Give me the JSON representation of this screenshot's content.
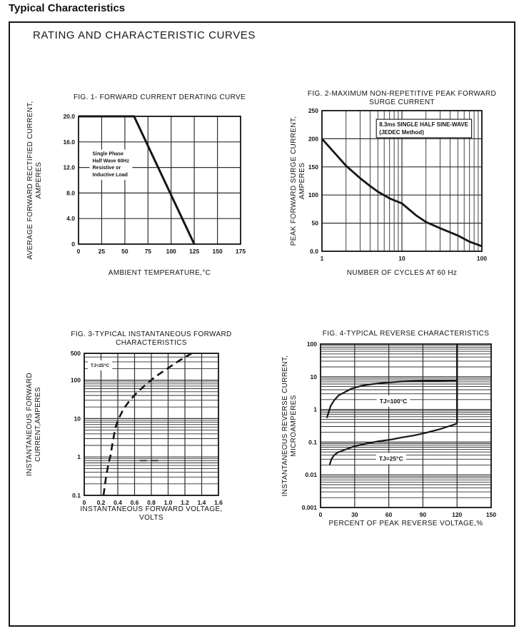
{
  "page": {
    "title": "Typical Characteristics",
    "section_heading": "RATING AND CHARACTERISTIC CURVES"
  },
  "colors": {
    "ink": "#161616",
    "grid": "#2f2f2f",
    "bg": "#ffffff"
  },
  "chart_data": [
    {
      "id": "fig1",
      "type": "line",
      "title": [
        "FIG. 1- FORWARD CURRENT DERATING CURVE"
      ],
      "xlabel": [
        "AMBIENT TEMPERATURE,°C"
      ],
      "ylabel": [
        "AVERAGE FORWARD RECTIFIED CURRENT,",
        "AMPERES"
      ],
      "xscale": "linear",
      "yscale": "linear",
      "xlim": [
        0,
        175
      ],
      "ylim": [
        0,
        20
      ],
      "xticks": [
        {
          "v": 0,
          "l": "0"
        },
        {
          "v": 25,
          "l": "25"
        },
        {
          "v": 50,
          "l": "50"
        },
        {
          "v": 75,
          "l": "75"
        },
        {
          "v": 100,
          "l": "100"
        },
        {
          "v": 125,
          "l": "125"
        },
        {
          "v": 150,
          "l": "150"
        },
        {
          "v": 175,
          "l": "175"
        }
      ],
      "yticks": [
        {
          "v": 0,
          "l": "0"
        },
        {
          "v": 4,
          "l": "4.0"
        },
        {
          "v": 8,
          "l": "8.0"
        },
        {
          "v": 12,
          "l": "12.0"
        },
        {
          "v": 16,
          "l": "16.0"
        },
        {
          "v": 20,
          "l": "20.0"
        }
      ],
      "grid": "major",
      "series": [
        {
          "name": "derating-curve",
          "x": [
            0,
            60,
            125
          ],
          "y": [
            20,
            20,
            0
          ],
          "dashed": false,
          "width": 3
        }
      ],
      "annotations": [
        {
          "lines": [
            "Single Phase",
            "Half Wave 60Hz",
            "Resistive or",
            "Inductive Load"
          ],
          "x": 15,
          "y": 13.9,
          "size": 7,
          "align": "start",
          "boxed": false
        }
      ]
    },
    {
      "id": "fig2",
      "type": "line",
      "title": [
        "FIG. 2-MAXIMUM NON-REPETITIVE PEAK FORWARD",
        "SURGE CURRENT"
      ],
      "xlabel": [
        "NUMBER OF CYCLES AT 60 Hz"
      ],
      "ylabel": [
        "PEAK FORWARD SURGE CURRENT,",
        "AMPERES"
      ],
      "xscale": "log",
      "yscale": "linear",
      "xlim": [
        1,
        100
      ],
      "ylim": [
        0,
        250
      ],
      "xticks": [
        {
          "v": 1,
          "l": "1"
        },
        {
          "v": 10,
          "l": "10"
        },
        {
          "v": 100,
          "l": "100"
        }
      ],
      "yticks": [
        {
          "v": 0,
          "l": "0.0"
        },
        {
          "v": 50,
          "l": "50"
        },
        {
          "v": 100,
          "l": "100"
        },
        {
          "v": 150,
          "l": "150"
        },
        {
          "v": 200,
          "l": "200"
        },
        {
          "v": 250,
          "l": "250"
        }
      ],
      "grid": "major-and-log-minor-x",
      "series": [
        {
          "name": "surge-current-curve",
          "x": [
            1,
            1.5,
            2,
            3,
            4,
            5,
            7,
            10,
            15,
            20,
            30,
            50,
            70,
            100
          ],
          "y": [
            200,
            172,
            152,
            130,
            116,
            106,
            94,
            85,
            64,
            52,
            41,
            28,
            17,
            9
          ],
          "dashed": false,
          "width": 2.8
        }
      ],
      "annotations": [
        {
          "lines": [
            "8.3ms SINGLE HALF SINE-WAVE",
            "(JEDEC Method)"
          ],
          "x": 5.2,
          "y": 222,
          "size": 8,
          "align": "start",
          "boxed": true
        }
      ]
    },
    {
      "id": "fig3",
      "type": "line",
      "title": [
        "FIG. 3-TYPICAL INSTANTANEOUS FORWARD",
        "CHARACTERISTICS"
      ],
      "xlabel": [
        "INSTANTANEOUS FORWARD VOLTAGE,",
        "VOLTS"
      ],
      "ylabel": [
        "INSTANTANEOUS FORWARD",
        "CURRENT,AMPERES"
      ],
      "xscale": "linear",
      "yscale": "log",
      "xlim": [
        0,
        1.6
      ],
      "ylim": [
        0.1,
        500
      ],
      "xticks": [
        {
          "v": 0,
          "l": "0"
        },
        {
          "v": 0.2,
          "l": "0.2"
        },
        {
          "v": 0.4,
          "l": "0.4"
        },
        {
          "v": 0.6,
          "l": "0.6"
        },
        {
          "v": 0.8,
          "l": "0.8"
        },
        {
          "v": 1.0,
          "l": "1.0"
        },
        {
          "v": 1.2,
          "l": "1.2"
        },
        {
          "v": 1.4,
          "l": "1.4"
        },
        {
          "v": 1.6,
          "l": "1.6"
        }
      ],
      "yticks": [
        {
          "v": 0.1,
          "l": "0.1"
        },
        {
          "v": 1,
          "l": "1"
        },
        {
          "v": 10,
          "l": "10"
        },
        {
          "v": 100,
          "l": "100"
        },
        {
          "v": 500,
          "l": "500"
        }
      ],
      "grid": "major-and-log-minor-y",
      "series": [
        {
          "name": "forward-characteristic-curve",
          "x": [
            0.23,
            0.26,
            0.29,
            0.31,
            0.34,
            0.37,
            0.41,
            0.47,
            0.54,
            0.63,
            0.73,
            0.84,
            0.99,
            1.13,
            1.28
          ],
          "y": [
            0.1,
            0.3,
            0.7,
            1,
            2.4,
            5.7,
            10,
            18,
            29,
            48,
            75,
            120,
            200,
            320,
            500
          ],
          "dashed": true,
          "width": 2.6
        },
        {
          "name": "legend-dash-mark",
          "x": [
            0.66,
            0.89
          ],
          "y": [
            0.8,
            0.8
          ],
          "dashed": true,
          "width": 1.6
        }
      ],
      "annotations": [
        {
          "lines": [
            "TJ=25°C"
          ],
          "x": 0.077,
          "y": 224,
          "size": 6.5,
          "align": "start",
          "boxed": false
        }
      ]
    },
    {
      "id": "fig4",
      "type": "line",
      "title": [
        "FIG. 4-TYPICAL REVERSE CHARACTERISTICS"
      ],
      "xlabel": [
        "PERCENT OF PEAK REVERSE VOLTAGE,%"
      ],
      "ylabel": [
        "INSTANTANEOUS REVERSE CURRENT,",
        "MICROAMPERES"
      ],
      "xscale": "linear",
      "yscale": "log",
      "xlim": [
        0,
        150
      ],
      "ylim": [
        0.001,
        100
      ],
      "xticks": [
        {
          "v": 0,
          "l": "0"
        },
        {
          "v": 30,
          "l": "30"
        },
        {
          "v": 60,
          "l": "60"
        },
        {
          "v": 90,
          "l": "90"
        },
        {
          "v": 120,
          "l": "120"
        },
        {
          "v": 150,
          "l": "150"
        }
      ],
      "yticks": [
        {
          "v": 0.001,
          "l": "0.001"
        },
        {
          "v": 0.01,
          "l": "0.01"
        },
        {
          "v": 0.1,
          "l": "0.1"
        },
        {
          "v": 1,
          "l": "1"
        },
        {
          "v": 10,
          "l": "10"
        },
        {
          "v": 100,
          "l": "100"
        }
      ],
      "grid": "major-and-log-minor-y",
      "series": [
        {
          "name": "tj-100c-curve",
          "x": [
            5.5,
            6,
            7,
            9,
            12,
            16,
            20,
            27,
            36,
            46,
            57,
            70,
            82,
            95,
            110,
            120
          ],
          "y": [
            0.55,
            0.62,
            0.8,
            1.3,
            1.9,
            2.7,
            3.2,
            4.3,
            5.3,
            6.0,
            6.6,
            7.1,
            7.4,
            7.5,
            7.6,
            7.65
          ],
          "dashed": false,
          "width": 2.2
        },
        {
          "name": "tj-25c-curve",
          "x": [
            8,
            8.5,
            9,
            10,
            12,
            15,
            22,
            30,
            40,
            50,
            62,
            72,
            82,
            92,
            105,
            112,
            117,
            119,
            120
          ],
          "y": [
            0.02,
            0.023,
            0.026,
            0.032,
            0.04,
            0.048,
            0.06,
            0.075,
            0.09,
            0.105,
            0.12,
            0.14,
            0.16,
            0.19,
            0.25,
            0.3,
            0.34,
            0.36,
            0.38
          ],
          "dashed": false,
          "width": 2.2
        },
        {
          "name": "breakdown-vertical-line",
          "x": [
            120,
            120
          ],
          "y": [
            0.38,
            100
          ],
          "dashed": false,
          "width": 2.4
        }
      ],
      "annotations": [
        {
          "lines": [
            "TJ=100°C"
          ],
          "x": 64,
          "y": 1.55,
          "size": 8.5,
          "align": "middle",
          "boxed": false
        },
        {
          "lines": [
            "TJ=25°C"
          ],
          "x": 62,
          "y": 0.027,
          "size": 8.5,
          "align": "middle",
          "boxed": false
        }
      ]
    }
  ]
}
